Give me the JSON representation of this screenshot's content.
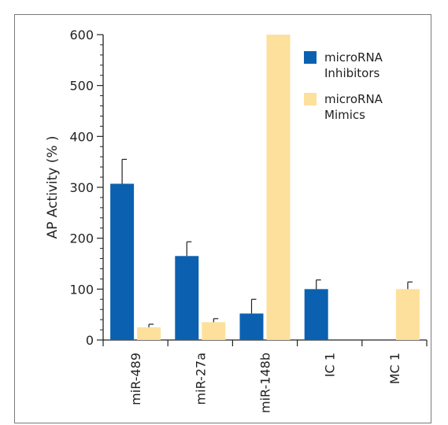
{
  "chart_data": {
    "type": "bar",
    "title": "",
    "xlabel": "",
    "ylabel": "AP Activity (% )",
    "ylim": [
      0,
      600
    ],
    "yticks": [
      0,
      100,
      200,
      300,
      400,
      500,
      600
    ],
    "grid": false,
    "legend_position": "top-right",
    "categories": [
      "miR-489",
      "miR-27a",
      "miR-148b",
      "IC 1",
      "MC 1"
    ],
    "series": [
      {
        "name": "microRNA Inhibitors",
        "legend_lines": [
          "microRNA",
          "Inhibitors"
        ],
        "color": "#0b61b0",
        "values": [
          307,
          165,
          52,
          100,
          null
        ],
        "errors": [
          48,
          28,
          28,
          18,
          null
        ]
      },
      {
        "name": "microRNA Mimics",
        "legend_lines": [
          "microRNA",
          "Mimics"
        ],
        "color": "#fde09c",
        "values": [
          25,
          35,
          600,
          null,
          100
        ],
        "errors": [
          6,
          7,
          null,
          null,
          14
        ]
      }
    ]
  }
}
